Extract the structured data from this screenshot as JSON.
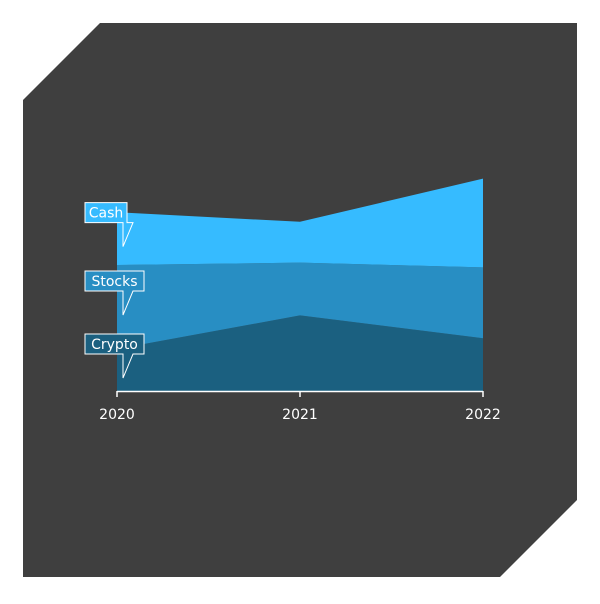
{
  "colors": {
    "page_background": "#ffffff",
    "panel_background": "#3f3f3f",
    "axis": "#ffffff",
    "tick_label": "#ffffff",
    "label_border": "#ffffff",
    "label_text": "#ffffff"
  },
  "chart_data": {
    "type": "area",
    "stacked": true,
    "title": "",
    "xlabel": "",
    "ylabel": "",
    "x": [
      "2020",
      "2021",
      "2022"
    ],
    "series": [
      {
        "name": "Crypto",
        "color": "#1b6080",
        "values": [
          35,
          63,
          44
        ]
      },
      {
        "name": "Stocks",
        "color": "#288ec3",
        "values": [
          70,
          44,
          59
        ]
      },
      {
        "name": "Cash",
        "color": "#36bbff",
        "values": [
          44,
          34,
          74
        ]
      }
    ],
    "ylim": [
      0,
      180
    ],
    "y_axis_shown": false,
    "grid": false,
    "legend": "series labels at left edge of each area"
  }
}
